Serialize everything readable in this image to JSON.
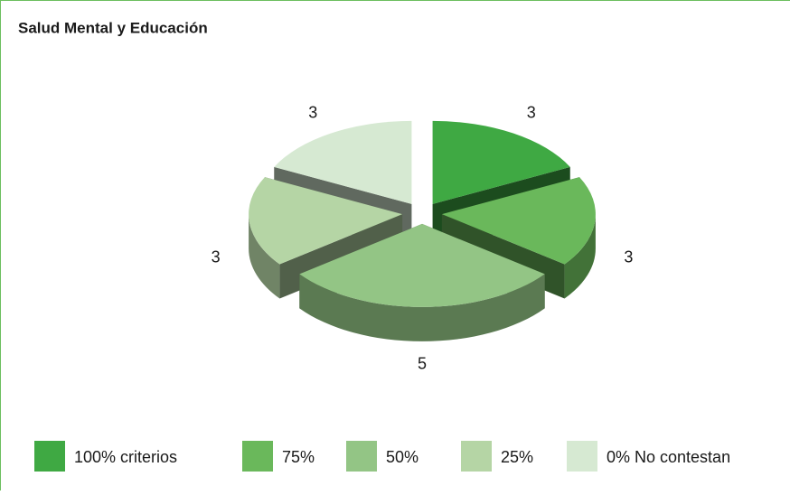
{
  "chart_data": {
    "type": "pie3d",
    "title": "Salud Mental y Educación",
    "categories": [
      "100% criterios",
      "75%",
      "50%",
      "25%",
      "0% No contestan"
    ],
    "values": [
      3,
      3,
      5,
      3,
      3
    ],
    "colors": [
      "#3fa943",
      "#6ab85b",
      "#93c585",
      "#b5d5a5",
      "#d6e9d2"
    ]
  }
}
